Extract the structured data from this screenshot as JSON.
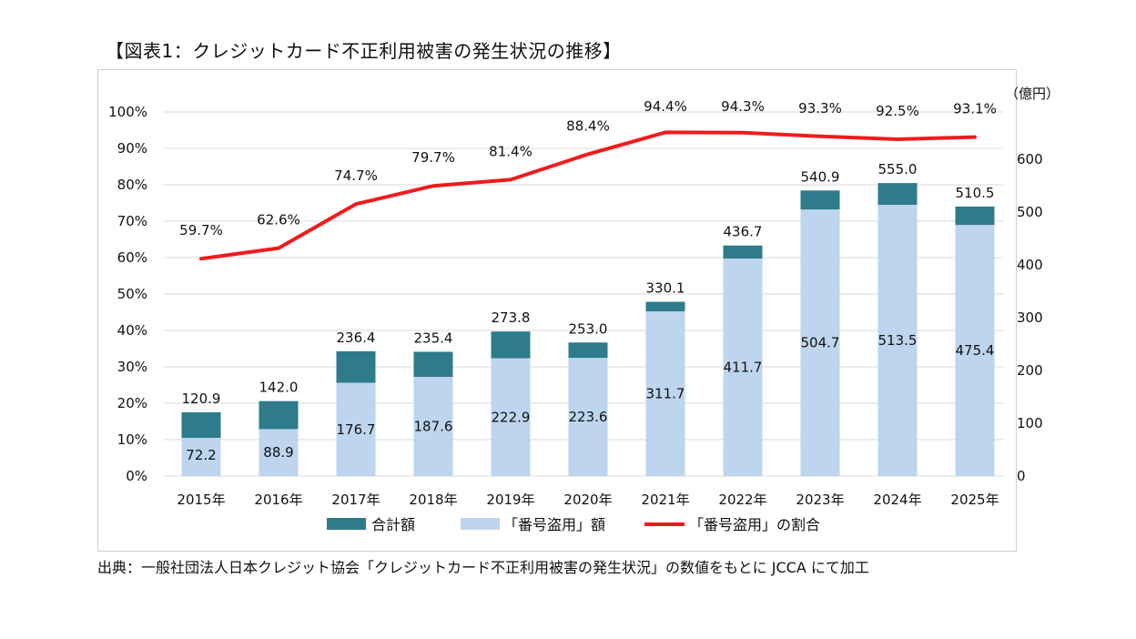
{
  "page": {
    "title": "【図表1：クレジットカード不正利用被害の発生状況の推移】",
    "source": "出典：一般社団法人日本クレジット協会「クレジットカード不正利用被害の発生状況」の数値をもとに JCCA にて加工"
  },
  "chart_data": {
    "type": "bar",
    "categories": [
      "2015年",
      "2016年",
      "2017年",
      "2018年",
      "2019年",
      "2020年",
      "2021年",
      "2022年",
      "2023年",
      "2024年",
      "2025年"
    ],
    "series": [
      {
        "name": "合計額",
        "type": "bar",
        "axis": "right",
        "color": "#2e7b8c",
        "values": [
          120.9,
          142.0,
          236.4,
          235.4,
          273.8,
          253.0,
          330.1,
          436.7,
          540.9,
          555.0,
          510.5
        ]
      },
      {
        "name": "「番号盗用」額",
        "type": "bar",
        "axis": "right",
        "color": "#bdd5ee",
        "values": [
          72.2,
          88.9,
          176.7,
          187.6,
          222.9,
          223.6,
          311.7,
          411.7,
          504.7,
          513.5,
          475.4
        ]
      },
      {
        "name": "「番号盗用」の割合",
        "type": "line",
        "axis": "left",
        "color": "#ee1c1c",
        "values": [
          59.7,
          62.6,
          74.7,
          79.7,
          81.4,
          88.4,
          94.4,
          94.3,
          93.3,
          92.5,
          93.1
        ],
        "labels": [
          "59.7%",
          "62.6%",
          "74.7%",
          "79.7%",
          "81.4%",
          "88.4%",
          "94.4%",
          "94.3%",
          "93.3%",
          "92.5%",
          "93.1%"
        ]
      }
    ],
    "total_labels": [
      "120.9",
      "142.0",
      "236.4",
      "235.4",
      "273.8",
      "253.0",
      "330.1",
      "436.7",
      "540.9",
      "555.0",
      "510.5"
    ],
    "theft_labels": [
      "72.2",
      "88.9",
      "176.7",
      "187.6",
      "222.9",
      "223.6",
      "311.7",
      "411.7",
      "504.7",
      "513.5",
      "475.4"
    ],
    "left_axis": {
      "ticks": [
        "0%",
        "10%",
        "20%",
        "30%",
        "40%",
        "50%",
        "60%",
        "70%",
        "80%",
        "90%",
        "100%"
      ],
      "ylim": [
        0,
        100
      ]
    },
    "right_axis": {
      "unit": "（億円）",
      "ticks": [
        "0",
        "100",
        "200",
        "300",
        "400",
        "500",
        "600"
      ],
      "ylim": [
        0,
        690
      ]
    },
    "grid": true,
    "legend_position": "bottom"
  }
}
